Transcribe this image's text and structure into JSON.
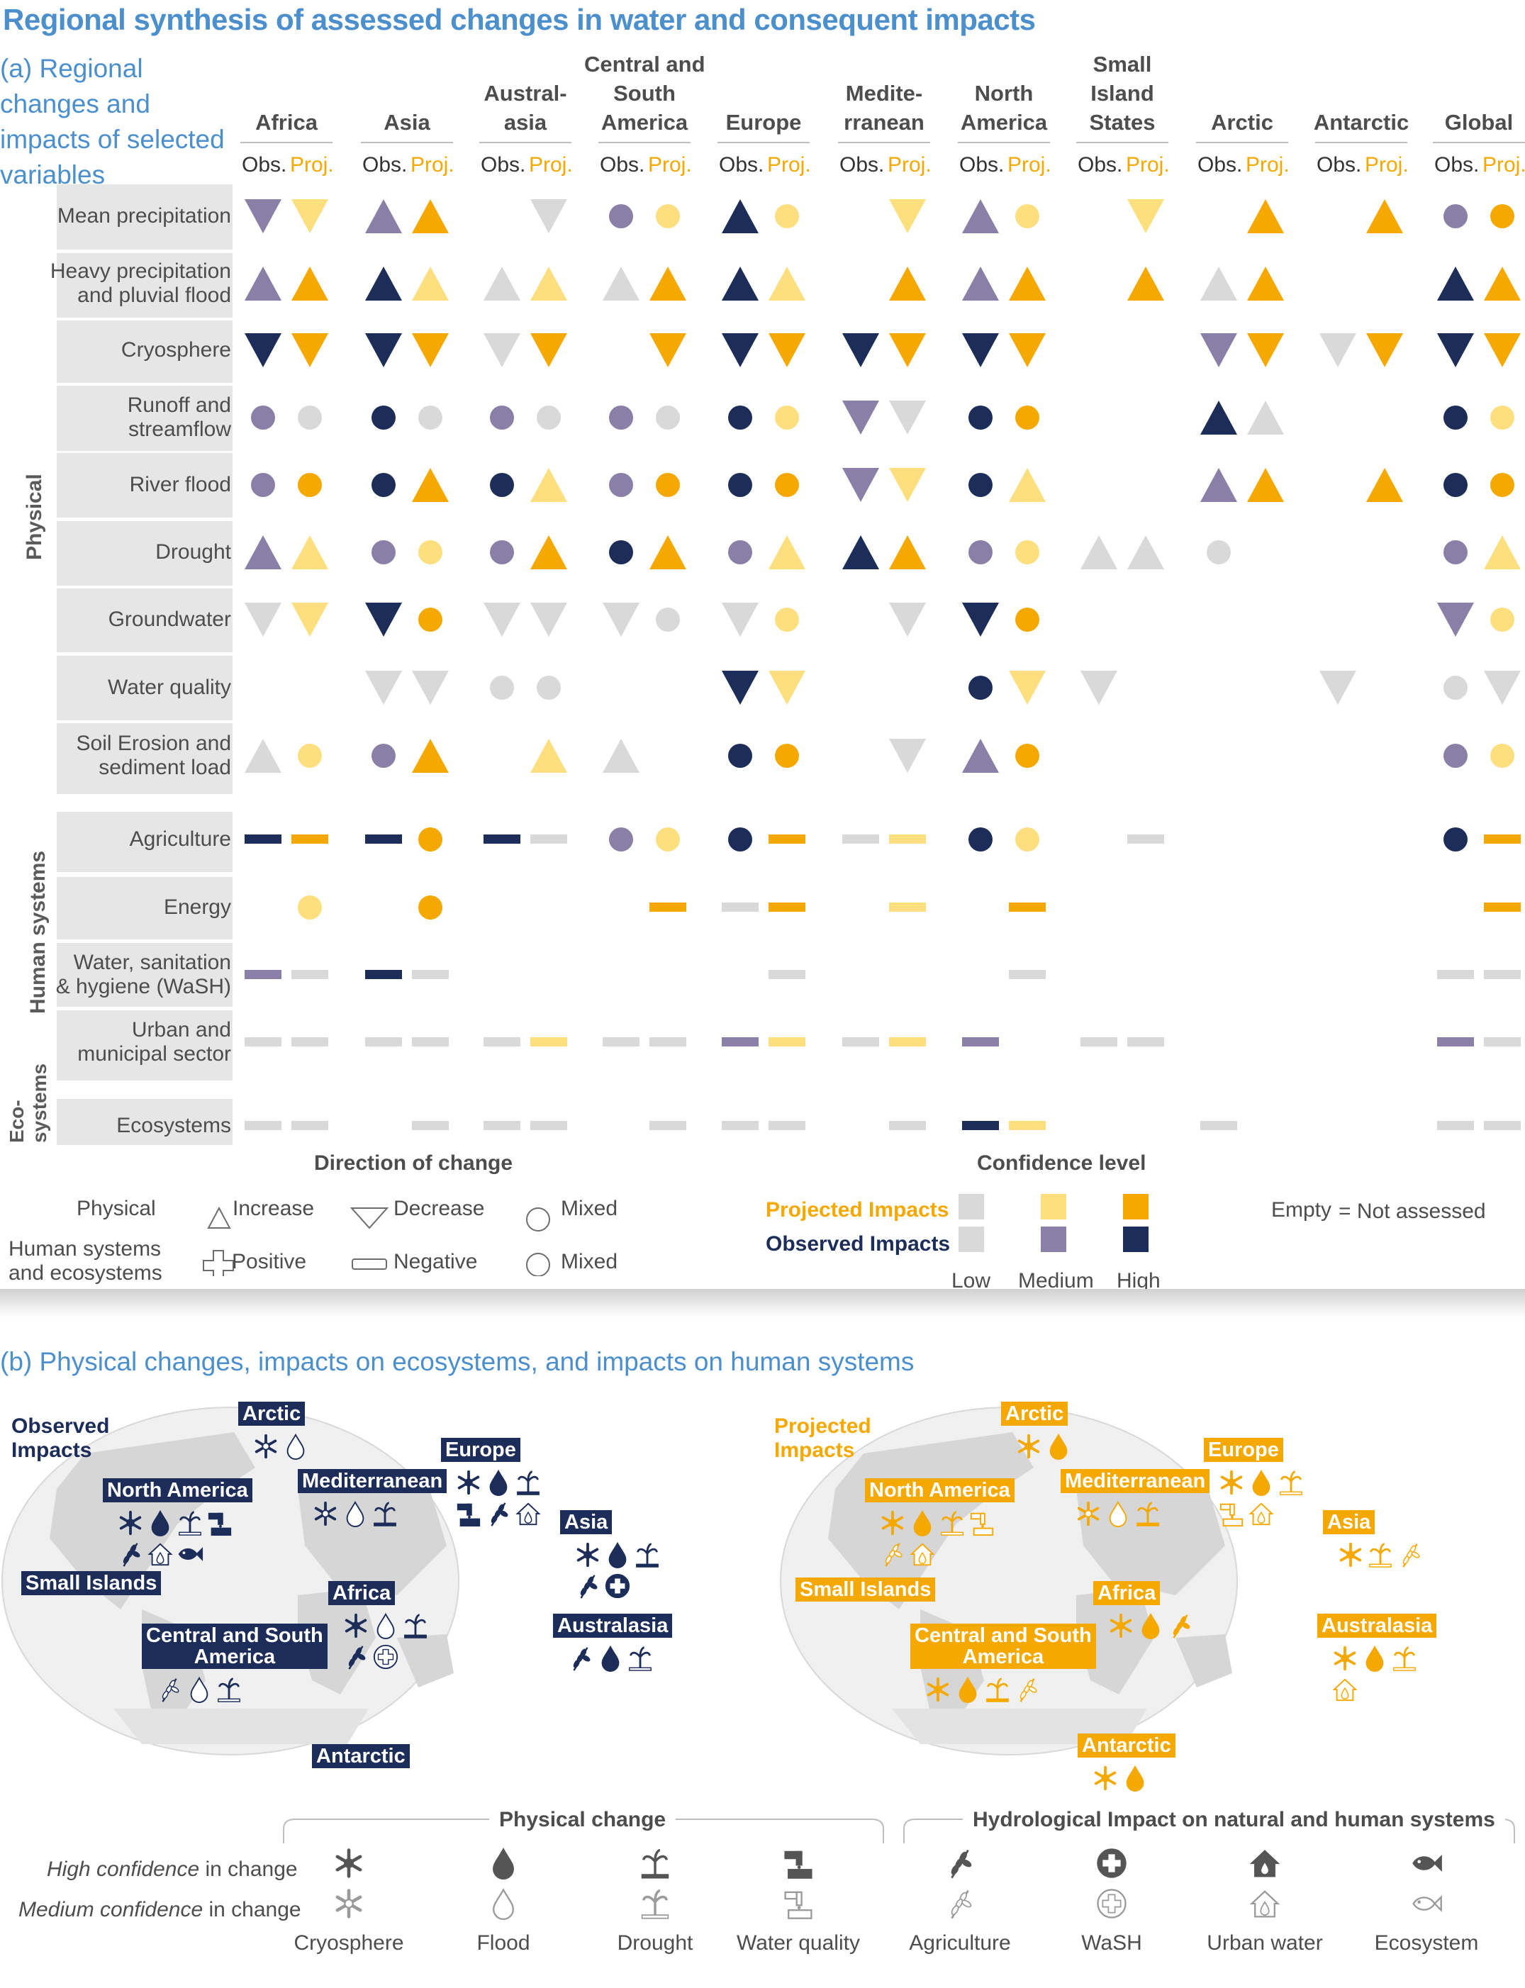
{
  "title": "Regional synthesis of assessed changes in water and consequent impacts",
  "panel_a": {
    "subtitle": "(a) Regional changes and impacts of selected variables",
    "obs_label": "Obs.",
    "proj_label": "Proj.",
    "regions": [
      "Africa",
      "Asia",
      "Austral-\nasia",
      "Central and\nSouth\nAmerica",
      "Europe",
      "Medite-\nrranean",
      "North\nAmerica",
      "Small\nIsland\nStates",
      "Arctic",
      "Antarctic",
      "Global"
    ],
    "side_labels": {
      "physical": "Physical",
      "human": "Human systems",
      "eco": "Eco-\nsystems"
    },
    "rows": [
      {
        "label": "Mean precipitation",
        "group": "physical"
      },
      {
        "label": "Heavy precipitation\nand pluvial flood",
        "group": "physical"
      },
      {
        "label": "Cryosphere",
        "group": "physical"
      },
      {
        "label": "Runoff and\nstreamflow",
        "group": "physical"
      },
      {
        "label": "River flood",
        "group": "physical"
      },
      {
        "label": "Drought",
        "group": "physical"
      },
      {
        "label": "Groundwater",
        "group": "physical"
      },
      {
        "label": "Water quality",
        "group": "physical"
      },
      {
        "label": "Soil Erosion and\nsediment load",
        "group": "physical"
      },
      {
        "label": "Agriculture",
        "group": "human"
      },
      {
        "label": "Energy",
        "group": "human"
      },
      {
        "label": "Water, sanitation\n& hygiene (WaSH)",
        "group": "human"
      },
      {
        "label": "Urban and\nmunicipal sector",
        "group": "human"
      },
      {
        "label": "Ecosystems",
        "group": "eco"
      }
    ],
    "symbol_key": "u=increase, d=decrease, c=mixed circle, n=negative bar; obs levels L/M/H; proj levels l/m/h",
    "grid": [
      [
        "dM",
        "dm",
        "uM",
        "uh",
        "",
        "dL",
        "cM",
        "cm",
        "uH",
        "cm",
        "",
        "dm",
        "uM",
        "cm",
        "",
        "dm",
        "",
        "uh",
        "",
        "uh",
        "cM",
        "ch"
      ],
      [
        "uM",
        "uh",
        "uH",
        "um",
        "uL",
        "um",
        "uL",
        "uh",
        "uH",
        "um",
        "",
        "uh",
        "uM",
        "uh",
        "",
        "uh",
        "uL",
        "uh",
        "",
        "",
        "uH",
        "uh"
      ],
      [
        "dH",
        "dh",
        "dH",
        "dh",
        "dL",
        "dh",
        "",
        "dh",
        "dH",
        "dh",
        "dH",
        "dh",
        "dH",
        "dh",
        "",
        "",
        "dM",
        "dh",
        "dL",
        "dh",
        "dH",
        "dh"
      ],
      [
        "cM",
        "cl",
        "cH",
        "cl",
        "cM",
        "cl",
        "cM",
        "cl",
        "cH",
        "cm",
        "dM",
        "dL",
        "cH",
        "ch",
        "",
        "",
        "uH",
        "uL",
        "",
        "",
        "cH",
        "cm"
      ],
      [
        "cM",
        "ch",
        "cH",
        "uh",
        "cH",
        "um",
        "cM",
        "ch",
        "cH",
        "ch",
        "dM",
        "dm",
        "cH",
        "um",
        "",
        "",
        "uM",
        "uh",
        "",
        "uh",
        "cH",
        "ch"
      ],
      [
        "uM",
        "um",
        "cM",
        "cm",
        "cM",
        "uh",
        "cH",
        "uh",
        "cM",
        "um",
        "uH",
        "uh",
        "cM",
        "cm",
        "uL",
        "uL",
        "cL",
        "",
        "",
        "",
        "cM",
        "um"
      ],
      [
        "dL",
        "dm",
        "dH",
        "ch",
        "dL",
        "dL",
        "dL",
        "cl",
        "dL",
        "cm",
        "",
        "dL",
        "dH",
        "ch",
        "",
        "",
        "",
        "",
        "",
        "",
        "dM",
        "cm"
      ],
      [
        "",
        "",
        "dL",
        "dL",
        "cL",
        "cl",
        "",
        "",
        "dH",
        "dm",
        "",
        "",
        "cH",
        "dm",
        "dL",
        "",
        "",
        "",
        "dL",
        "",
        "cL",
        "dL"
      ],
      [
        "uL",
        "cm",
        "cM",
        "uh",
        "",
        "um",
        "uL",
        "",
        "cH",
        "ch",
        "",
        "dL",
        "uM",
        "ch",
        "",
        "",
        "",
        "",
        "",
        "",
        "cM",
        "cm"
      ],
      [
        "nH",
        "nh",
        "nH",
        "ch",
        "nH",
        "nl",
        "cM",
        "cm",
        "cH",
        "nh",
        "nL",
        "nm",
        "cH",
        "cm",
        "",
        "nl",
        "",
        "",
        "",
        "",
        "cH",
        "nh"
      ],
      [
        "",
        "cm",
        "",
        "ch",
        "",
        "",
        "",
        "nh",
        "nL",
        "nh",
        "",
        "nm",
        "",
        "nh",
        "",
        "",
        "",
        "",
        "",
        "",
        "",
        "nh"
      ],
      [
        "nM",
        "nl",
        "nH",
        "nl",
        "",
        "",
        "",
        "",
        "",
        "nl",
        "",
        "",
        "",
        "nl",
        "",
        "",
        "",
        "",
        "",
        "",
        "nL",
        "nl"
      ],
      [
        "nL",
        "nl",
        "nL",
        "nl",
        "nL",
        "nm",
        "nL",
        "nl",
        "nM",
        "nm",
        "nL",
        "nm",
        "nM",
        "",
        "nL",
        "nl",
        "",
        "",
        "",
        "",
        "nM",
        "nl"
      ],
      [
        "nL",
        "nl",
        "",
        "nl",
        "nL",
        "nl",
        "",
        "nl",
        "nL",
        "nl",
        "",
        "nl",
        "nH",
        "nm",
        "",
        "",
        "nL",
        "",
        "",
        "",
        "nL",
        "nl"
      ]
    ],
    "legend": {
      "direction_title": "Direction of change",
      "confidence_title": "Confidence level",
      "physical": "Physical",
      "human": "Human systems\nand ecosystems",
      "increase": "Increase",
      "decrease": "Decrease",
      "mixed1": "Mixed",
      "positive": "Positive",
      "negative": "Negative",
      "mixed2": "Mixed",
      "projected": "Projected Impacts",
      "observed": "Observed Impacts",
      "low": "Low",
      "medium": "Medium",
      "high": "High",
      "empty_word": "Empty",
      "empty_def": "= Not assessed"
    }
  },
  "panel_b": {
    "subtitle": "(b) Physical changes, impacts on ecosystems, and impacts on human systems",
    "observed_title": "Observed\nImpacts",
    "projected_title": "Projected\nImpacts",
    "map_regions": [
      "Arctic",
      "Europe",
      "North America",
      "Mediterranean",
      "Asia",
      "Small Islands",
      "Africa",
      "Central and South\nAmerica",
      "Australasia",
      "Antarctic"
    ],
    "observed_icons": {
      "Arctic": [
        "cryo-M",
        "flood-M"
      ],
      "North America": [
        "cryo-H",
        "flood-H",
        "drought-M",
        "quality-H",
        "agri-H",
        "urban-M",
        "eco-H"
      ],
      "Europe": [
        "cryo-H",
        "flood-H",
        "drought-H",
        "quality-H",
        "agri-H",
        "urban-M"
      ],
      "Mediterranean": [
        "cryo-M",
        "flood-M",
        "drought-H"
      ],
      "Asia": [
        "cryo-H",
        "flood-H",
        "drought-H",
        "agri-H",
        "wash-H"
      ],
      "Africa": [
        "cryo-H",
        "flood-M",
        "drought-H",
        "agri-H",
        "wash-M"
      ],
      "Central and South\nAmerica": [
        "agri-M",
        "flood-M",
        "drought-M"
      ],
      "Australasia": [
        "agri-H",
        "flood-H",
        "drought-M"
      ]
    },
    "projected_icons": {
      "Arctic": [
        "cryo-H",
        "flood-H"
      ],
      "North America": [
        "cryo-H",
        "flood-H",
        "drought-M",
        "quality-M",
        "agri-M",
        "urban-M"
      ],
      "Europe": [
        "cryo-H",
        "flood-H",
        "drought-M",
        "quality-M",
        "urban-M"
      ],
      "Mediterranean": [
        "cryo-M",
        "flood-M",
        "drought-H"
      ],
      "Asia": [
        "cryo-H",
        "drought-M",
        "agri-M"
      ],
      "Africa": [
        "cryo-H",
        "flood-H",
        "agri-H"
      ],
      "Central and South\nAmerica": [
        "cryo-H",
        "flood-H",
        "drought-H",
        "agri-M"
      ],
      "Australasia": [
        "cryo-H",
        "flood-H",
        "drought-M",
        "urban-M"
      ],
      "Antarctic": [
        "cryo-H",
        "flood-H"
      ]
    },
    "legend": {
      "physical_change": "Physical change",
      "hydrological_impact": "Hydrological Impact on natural and human systems",
      "high_conf_it": "High confidence",
      "medium_conf_it": "Medium confidence",
      "in_change": " in change",
      "captions": [
        "Cryosphere",
        "Flood",
        "Drought",
        "Water quality",
        "Agriculture",
        "WaSH",
        "Urban water",
        "Ecosystem"
      ]
    }
  },
  "colors": {
    "title_blue": "#4b8fcd",
    "obs_low": "#d9d9d9",
    "obs_medium": "#8a7fa7",
    "obs_high": "#1c2d5a",
    "proj_low": "#d9d9d9",
    "proj_medium": "#fddf7f",
    "proj_high": "#f5a800",
    "band": "#e6e6e6"
  }
}
